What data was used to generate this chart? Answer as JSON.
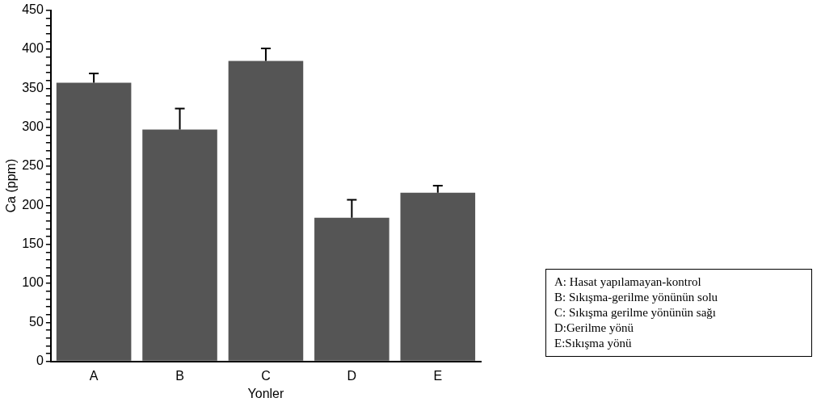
{
  "chart_data": {
    "type": "bar",
    "xlabel": "Yonler",
    "ylabel": "Ca (ppm)",
    "categories": [
      "A",
      "B",
      "C",
      "D",
      "E"
    ],
    "values": [
      357,
      297,
      385,
      184,
      216
    ],
    "errors": [
      [
        357,
        369
      ],
      [
        297,
        324
      ],
      [
        385,
        401
      ],
      [
        184,
        207
      ],
      [
        216,
        225
      ]
    ],
    "color": "#555555",
    "ylim": [
      0,
      450
    ],
    "yticks": [
      0,
      {
        "value": 10,
        "label": null
      },
      {
        "value": 20,
        "label": null
      },
      {
        "value": 30,
        "label": null
      },
      {
        "value": 40,
        "label": null
      },
      50,
      {
        "value": 60,
        "label": null
      },
      {
        "value": 70,
        "label": null
      },
      {
        "value": 80,
        "label": null
      },
      {
        "value": 90,
        "label": null
      },
      100,
      {
        "value": 110,
        "label": null
      },
      {
        "value": 120,
        "label": null
      },
      {
        "value": 130,
        "label": null
      },
      {
        "value": 140,
        "label": null
      },
      150,
      {
        "value": 160,
        "label": null
      },
      {
        "value": 170,
        "label": null
      },
      {
        "value": 180,
        "label": null
      },
      {
        "value": 190,
        "label": null
      },
      200,
      {
        "value": 210,
        "label": null
      },
      {
        "value": 220,
        "label": null
      },
      {
        "value": 230,
        "label": null
      },
      {
        "value": 240,
        "label": null
      },
      250,
      {
        "value": 260,
        "label": null
      },
      {
        "value": 270,
        "label": null
      },
      {
        "value": 280,
        "label": null
      },
      {
        "value": 290,
        "label": null
      },
      300,
      {
        "value": 310,
        "label": null
      },
      {
        "value": 320,
        "label": null
      },
      {
        "value": 330,
        "label": null
      },
      {
        "value": 340,
        "label": null
      },
      350,
      {
        "value": 360,
        "label": null
      },
      {
        "value": 370,
        "label": null
      },
      {
        "value": 380,
        "label": null
      },
      {
        "value": 390,
        "label": null
      },
      400,
      {
        "value": 410,
        "label": null
      },
      {
        "value": 420,
        "label": null
      },
      {
        "value": 430,
        "label": null
      },
      {
        "value": 440,
        "label": null
      },
      450
    ],
    "grid": false,
    "legend": false,
    "annotations": [
      "A: Hasat yapılamayan-kontrol",
      "B: Sıkışma-gerilme yönünün solu",
      "C: Sıkışma gerilme yönünün sağı",
      "D:Gerilme yönü",
      "E:Sıkışma yönü"
    ]
  }
}
